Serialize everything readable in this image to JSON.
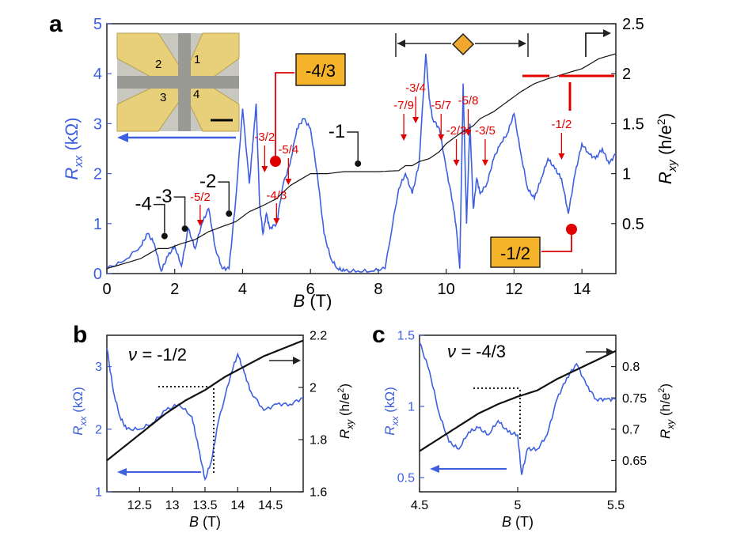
{
  "colors": {
    "rxx": "#3d5fe0",
    "rxy": "#111111",
    "annot": "#e00000",
    "label_box": "#f5b32a",
    "diamond": "#f0a830"
  },
  "chart_data": [
    {
      "panel": "a",
      "type": "line",
      "xlabel_var": "B",
      "xlabel_unit": "(T)",
      "ylabel_left_var": "R",
      "ylabel_left_sub": "xx",
      "ylabel_left_unit": "(kΩ)",
      "ylabel_right_var": "R",
      "ylabel_right_sub": "xy",
      "ylabel_right_unit": "(h/e",
      "ylabel_right_sup": "2",
      "ylabel_right_close": ")",
      "xlim": [
        0,
        15
      ],
      "ylim_left": [
        0,
        5
      ],
      "ylim_right": [
        0,
        2.5
      ],
      "xticks": [
        "0",
        "2",
        "4",
        "6",
        "8",
        "10",
        "12",
        "14"
      ],
      "yticks_left": [
        "0",
        "1",
        "2",
        "3",
        "4",
        "5"
      ],
      "yticks_right": [
        "0.5",
        "1",
        "1.5",
        "2",
        "2.5"
      ],
      "series": [
        {
          "name": "Rxx",
          "axis": "left",
          "x": [
            0,
            0.5,
            1,
            1.2,
            1.4,
            1.6,
            1.8,
            2,
            2.2,
            2.4,
            2.6,
            2.8,
            3,
            3.2,
            3.4,
            3.6,
            3.8,
            4,
            4.2,
            4.3,
            4.4,
            4.5,
            4.6,
            4.7,
            4.8,
            5,
            5.2,
            5.4,
            5.6,
            5.8,
            6,
            6.2,
            6.4,
            6.6,
            6.8,
            7,
            7.4,
            7.8,
            8.2,
            8.6,
            8.8,
            9,
            9.2,
            9.4,
            9.5,
            9.6,
            9.8,
            10,
            10.2,
            10.3,
            10.4,
            10.5,
            10.6,
            10.7,
            10.8,
            10.9,
            11,
            11.2,
            11.4,
            11.6,
            11.8,
            12,
            12.2,
            12.4,
            12.6,
            12.8,
            13,
            13.2,
            13.4,
            13.6,
            13.8,
            14,
            14.2,
            14.4,
            14.6,
            14.8,
            15
          ],
          "y": [
            0.1,
            0.25,
            0.55,
            0.8,
            0.6,
            0.05,
            0.35,
            0.55,
            0.15,
            0.9,
            0.5,
            1.0,
            1.3,
            0.5,
            0.1,
            0.1,
            1.5,
            3.3,
            1.8,
            2.6,
            3.4,
            1.4,
            0.8,
            1.2,
            0.9,
            1.0,
            1.8,
            2.2,
            2.9,
            3.1,
            2.9,
            2.0,
            0.8,
            0.3,
            0.1,
            0.05,
            0.05,
            0.05,
            0.1,
            1.7,
            2.0,
            1.6,
            2.2,
            4.4,
            3.5,
            3.1,
            2.9,
            2.1,
            1.4,
            0.9,
            0.1,
            3.8,
            1.0,
            3.0,
            1.3,
            1.9,
            1.6,
            1.8,
            2.3,
            2.6,
            2.8,
            3.2,
            2.4,
            1.7,
            1.5,
            1.9,
            2.3,
            2.1,
            1.9,
            1.2,
            2.0,
            2.6,
            2.4,
            2.3,
            2.5,
            2.2,
            2.4
          ]
        },
        {
          "name": "Rxy",
          "axis": "right",
          "x": [
            0,
            0.5,
            1,
            1.5,
            1.8,
            2.2,
            2.6,
            3,
            3.4,
            3.8,
            4.2,
            4.6,
            5,
            5.4,
            6,
            6.5,
            7,
            8,
            8.6,
            8.8,
            9,
            9.2,
            9.5,
            9.8,
            10,
            10.2,
            10.4,
            10.6,
            10.8,
            11,
            11.4,
            11.8,
            12.2,
            12.6,
            13,
            13.5,
            14,
            14.5,
            15
          ],
          "y": [
            0.05,
            0.1,
            0.15,
            0.25,
            0.25,
            0.3,
            0.34,
            0.42,
            0.47,
            0.52,
            0.62,
            0.68,
            0.75,
            0.88,
            1.0,
            1.0,
            1.02,
            1.02,
            1.03,
            1.08,
            1.08,
            1.12,
            1.15,
            1.22,
            1.3,
            1.35,
            1.4,
            1.44,
            1.48,
            1.55,
            1.62,
            1.72,
            1.82,
            1.9,
            1.95,
            2.0,
            2.05,
            2.15,
            2.2
          ]
        }
      ],
      "filling_factors": [
        {
          "label": "-4",
          "B": 1.7,
          "R": 0.75
        },
        {
          "label": "-3",
          "B": 2.3,
          "R": 0.9
        },
        {
          "label": "-2",
          "B": 3.6,
          "R": 1.2
        },
        {
          "label": "-1",
          "B": 7.4,
          "R": 2.2
        }
      ],
      "fractions_top": [
        {
          "label": "-3/2",
          "B": 4.65
        },
        {
          "label": "-5/4",
          "B": 5.35
        },
        {
          "label": "-7/9",
          "B": 8.75
        },
        {
          "label": "-3/4",
          "B": 9.1
        },
        {
          "label": "-5/7",
          "B": 9.85
        },
        {
          "label": "-5/8",
          "B": 10.65
        },
        {
          "label": "-2/3",
          "B": 10.3
        },
        {
          "label": "-3/5",
          "B": 11.15
        },
        {
          "label": "-1/2",
          "B": 13.4
        }
      ],
      "fractions_bottom": [
        {
          "label": "-5/2",
          "B": 2.75
        },
        {
          "label": "-4/3",
          "B": 5.0
        }
      ],
      "box_labels": [
        "-4/3",
        "-1/2"
      ],
      "panel_label": "a"
    },
    {
      "panel": "b",
      "type": "line",
      "annotation_prefix": "ν = ",
      "annotation": "-1/2",
      "xlabel_var": "B",
      "xlabel_unit": "(T)",
      "ylabel_left_var": "R",
      "ylabel_left_sub": "xx",
      "ylabel_left_unit": "(kΩ)",
      "ylabel_right_var": "R",
      "ylabel_right_sub": "xy",
      "ylabel_right_unit": "(h/e",
      "ylabel_right_sup": "2",
      "ylabel_right_close": ")",
      "xlim": [
        12,
        15
      ],
      "ylim_left": [
        1,
        3.5
      ],
      "ylim_right": [
        1.6,
        2.2
      ],
      "xticks": [
        "12.5",
        "13",
        "13.5",
        "14",
        "14.5"
      ],
      "yticks_left": [
        "1",
        "2",
        "3"
      ],
      "yticks_right": [
        "1.6",
        "1.8",
        "2",
        "2.2"
      ],
      "series": [
        {
          "name": "Rxx",
          "axis": "left",
          "x": [
            12,
            12.1,
            12.2,
            12.3,
            12.5,
            12.7,
            12.9,
            13.1,
            13.3,
            13.4,
            13.5,
            13.6,
            13.7,
            13.9,
            14.0,
            14.1,
            14.2,
            14.4,
            14.6,
            14.8,
            15
          ],
          "y": [
            3.3,
            2.6,
            2.2,
            2.0,
            2.0,
            2.1,
            2.3,
            2.4,
            2.2,
            1.7,
            1.2,
            1.5,
            2.1,
            2.9,
            3.2,
            2.9,
            2.6,
            2.3,
            2.4,
            2.4,
            2.5
          ]
        },
        {
          "name": "Rxy",
          "axis": "right",
          "x": [
            12,
            12.3,
            12.6,
            12.9,
            13.2,
            13.5,
            13.8,
            14.1,
            14.4,
            14.7,
            15
          ],
          "y": [
            1.72,
            1.78,
            1.84,
            1.9,
            1.95,
            1.99,
            2.04,
            2.08,
            2.12,
            2.15,
            2.18
          ]
        }
      ],
      "panel_label": "b"
    },
    {
      "panel": "c",
      "type": "line",
      "annotation_prefix": "ν = ",
      "annotation": "-4/3",
      "xlabel_var": "B",
      "xlabel_unit": "(T)",
      "ylabel_left_var": "R",
      "ylabel_left_sub": "xx",
      "ylabel_left_unit": "(kΩ)",
      "ylabel_right_var": "R",
      "ylabel_right_sub": "xy",
      "ylabel_right_unit": "(h/e",
      "ylabel_right_sup": "2",
      "ylabel_right_close": ")",
      "xlim": [
        4.5,
        5.5
      ],
      "ylim_left": [
        0.4,
        1.5
      ],
      "ylim_right": [
        0.6,
        0.85
      ],
      "xticks": [
        "4.5",
        "5",
        "5.5"
      ],
      "yticks_left": [
        "0.5",
        "1",
        "1.5"
      ],
      "yticks_right": [
        "0.65",
        "0.7",
        "0.75",
        "0.8"
      ],
      "series": [
        {
          "name": "Rxx",
          "axis": "left",
          "x": [
            4.5,
            4.55,
            4.6,
            4.65,
            4.7,
            4.75,
            4.8,
            4.85,
            4.9,
            4.95,
            5.0,
            5.02,
            5.05,
            5.1,
            5.15,
            5.2,
            5.25,
            5.3,
            5.35,
            5.4,
            5.45,
            5.5
          ],
          "y": [
            1.45,
            1.25,
            0.95,
            0.75,
            0.7,
            0.82,
            0.85,
            0.8,
            0.9,
            0.82,
            0.8,
            0.52,
            0.7,
            0.7,
            0.8,
            1.05,
            1.2,
            1.3,
            1.15,
            1.05,
            1.05,
            1.05
          ]
        },
        {
          "name": "Rxy",
          "axis": "right",
          "x": [
            4.5,
            4.6,
            4.7,
            4.8,
            4.9,
            5.0,
            5.1,
            5.2,
            5.3,
            5.4,
            5.5
          ],
          "y": [
            0.665,
            0.685,
            0.705,
            0.725,
            0.74,
            0.752,
            0.762,
            0.78,
            0.795,
            0.81,
            0.825
          ]
        }
      ],
      "panel_label": "c"
    }
  ]
}
